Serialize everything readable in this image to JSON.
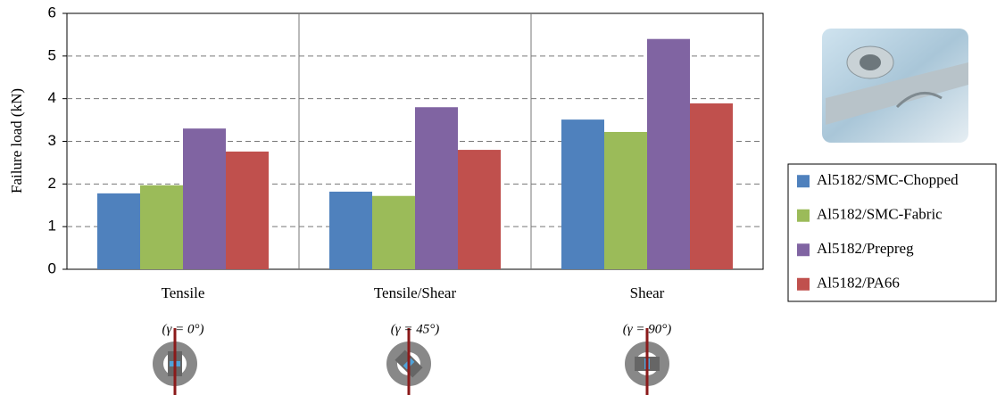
{
  "chart_data": {
    "type": "bar",
    "y_label": "Failure load (kN)",
    "categories": [
      "Tensile",
      "Tensile/Shear",
      "Shear"
    ],
    "annotations": [
      "(γ = 0°)",
      "(γ = 45°)",
      "(γ = 90°)"
    ],
    "series": [
      {
        "name": "Al5182/SMC-Chopped",
        "color": "#4f81bd",
        "values": [
          1.78,
          1.82,
          3.51
        ]
      },
      {
        "name": "Al5182/SMC-Fabric",
        "color": "#9bbb59",
        "values": [
          1.97,
          1.72,
          3.22
        ]
      },
      {
        "name": "Al5182/Prepreg",
        "color": "#8064a2",
        "values": [
          3.3,
          3.8,
          5.4
        ]
      },
      {
        "name": "Al5182/PA66",
        "color": "#c0504d",
        "values": [
          2.76,
          2.8,
          3.89
        ]
      }
    ],
    "ylim": [
      0,
      6
    ],
    "yticks": [
      0,
      1,
      2,
      3,
      4,
      5,
      6
    ],
    "grid": true,
    "legend": "right"
  }
}
